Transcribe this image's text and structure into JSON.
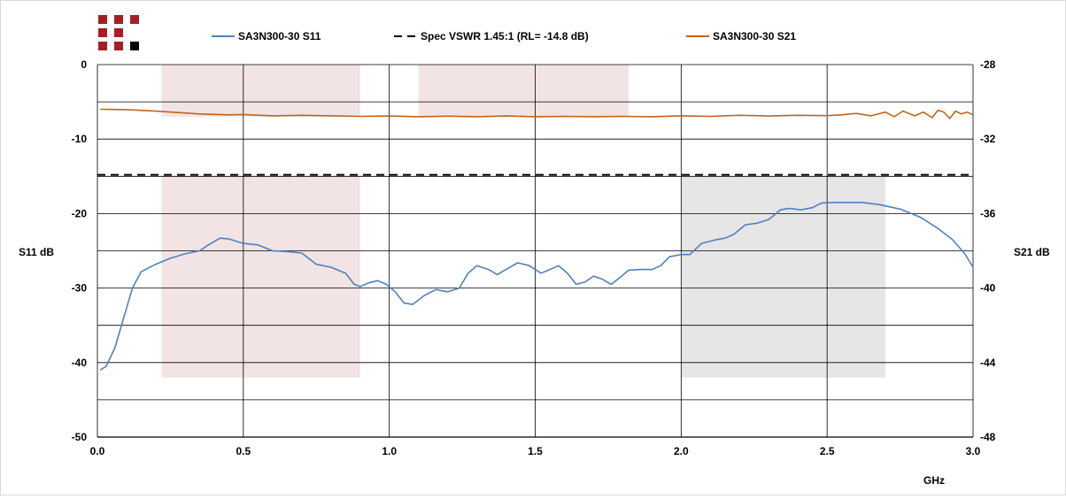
{
  "chart_data": {
    "type": "line",
    "xlabel": "GHz",
    "ylabel_left": "S11 dB",
    "ylabel_right": "S21 dB",
    "xlim": [
      0,
      3
    ],
    "ylim_left": [
      -50,
      0
    ],
    "ylim_right": [
      -48,
      -28
    ],
    "x_ticks": [
      "0.0",
      "0.5",
      "1.0",
      "1.5",
      "2.0",
      "2.5",
      "3.0"
    ],
    "y_left_ticks": [
      "0",
      "-10",
      "-20",
      "-30",
      "-40",
      "-50"
    ],
    "y_right_ticks": [
      "-28",
      "-32",
      "-36",
      "-40",
      "-44",
      "-48"
    ],
    "grid": true,
    "legend_position": "top",
    "bands": [
      {
        "x": [
          0.22,
          0.9
        ],
        "y": [
          -42,
          -15
        ],
        "color": "#f2e4e4"
      },
      {
        "x": [
          2.0,
          2.7
        ],
        "y": [
          -42,
          -15
        ],
        "color": "#e6e6e6"
      },
      {
        "x": [
          0.22,
          0.9
        ],
        "y": [
          -7,
          0
        ],
        "color": "#f2e4e4"
      },
      {
        "x": [
          1.1,
          1.82
        ],
        "y": [
          -7,
          0
        ],
        "color": "#f2e4e4"
      }
    ],
    "series": [
      {
        "name": "SA3N300-30 S11",
        "axis": "left",
        "color": "#4f81bd",
        "dash": "",
        "points": [
          [
            0.01,
            -41
          ],
          [
            0.03,
            -40.5
          ],
          [
            0.06,
            -38
          ],
          [
            0.09,
            -34
          ],
          [
            0.12,
            -30
          ],
          [
            0.15,
            -27.8
          ],
          [
            0.2,
            -26.8
          ],
          [
            0.25,
            -26
          ],
          [
            0.3,
            -25.4
          ],
          [
            0.35,
            -25
          ],
          [
            0.38,
            -24.2
          ],
          [
            0.42,
            -23.3
          ],
          [
            0.45,
            -23.4
          ],
          [
            0.5,
            -24
          ],
          [
            0.55,
            -24.2
          ],
          [
            0.6,
            -25
          ],
          [
            0.65,
            -25.1
          ],
          [
            0.7,
            -25.3
          ],
          [
            0.75,
            -26.8
          ],
          [
            0.8,
            -27.2
          ],
          [
            0.85,
            -28
          ],
          [
            0.88,
            -29.5
          ],
          [
            0.9,
            -29.8
          ],
          [
            0.93,
            -29.3
          ],
          [
            0.96,
            -29
          ],
          [
            0.99,
            -29.5
          ],
          [
            1.02,
            -30.5
          ],
          [
            1.05,
            -32
          ],
          [
            1.08,
            -32.2
          ],
          [
            1.12,
            -31
          ],
          [
            1.16,
            -30.2
          ],
          [
            1.2,
            -30.5
          ],
          [
            1.24,
            -30
          ],
          [
            1.27,
            -28
          ],
          [
            1.3,
            -27
          ],
          [
            1.34,
            -27.5
          ],
          [
            1.37,
            -28.2
          ],
          [
            1.4,
            -27.5
          ],
          [
            1.44,
            -26.6
          ],
          [
            1.48,
            -27
          ],
          [
            1.52,
            -28
          ],
          [
            1.55,
            -27.5
          ],
          [
            1.58,
            -27
          ],
          [
            1.61,
            -28
          ],
          [
            1.64,
            -29.5
          ],
          [
            1.67,
            -29.2
          ],
          [
            1.7,
            -28.4
          ],
          [
            1.73,
            -28.8
          ],
          [
            1.76,
            -29.5
          ],
          [
            1.79,
            -28.6
          ],
          [
            1.82,
            -27.6
          ],
          [
            1.86,
            -27.5
          ],
          [
            1.9,
            -27.5
          ],
          [
            1.93,
            -27
          ],
          [
            1.96,
            -25.8
          ],
          [
            2.0,
            -25.5
          ],
          [
            2.03,
            -25.5
          ],
          [
            2.07,
            -24
          ],
          [
            2.12,
            -23.5
          ],
          [
            2.15,
            -23.3
          ],
          [
            2.18,
            -22.8
          ],
          [
            2.22,
            -21.5
          ],
          [
            2.26,
            -21.3
          ],
          [
            2.3,
            -20.8
          ],
          [
            2.34,
            -19.5
          ],
          [
            2.37,
            -19.3
          ],
          [
            2.41,
            -19.5
          ],
          [
            2.45,
            -19.2
          ],
          [
            2.48,
            -18.6
          ],
          [
            2.52,
            -18.5
          ],
          [
            2.56,
            -18.5
          ],
          [
            2.62,
            -18.5
          ],
          [
            2.68,
            -18.8
          ],
          [
            2.75,
            -19.4
          ],
          [
            2.82,
            -20.5
          ],
          [
            2.88,
            -22
          ],
          [
            2.93,
            -23.5
          ],
          [
            2.97,
            -25.3
          ],
          [
            3.0,
            -27.2
          ]
        ]
      },
      {
        "name": "Spec VSWR 1.45:1 (RL= -14.8 dB)",
        "axis": "left",
        "color": "#000000",
        "dash": "9,6",
        "points": [
          [
            0,
            -14.8
          ],
          [
            3.0,
            -14.8
          ]
        ]
      },
      {
        "name": "SA3N300-30 S21",
        "axis": "right",
        "color": "#c0651e",
        "dash": "",
        "points": [
          [
            0.01,
            -30.4
          ],
          [
            0.1,
            -30.42
          ],
          [
            0.2,
            -30.5
          ],
          [
            0.3,
            -30.6
          ],
          [
            0.35,
            -30.65
          ],
          [
            0.45,
            -30.7
          ],
          [
            0.5,
            -30.68
          ],
          [
            0.6,
            -30.75
          ],
          [
            0.7,
            -30.72
          ],
          [
            0.8,
            -30.75
          ],
          [
            0.9,
            -30.78
          ],
          [
            1.0,
            -30.76
          ],
          [
            1.1,
            -30.8
          ],
          [
            1.2,
            -30.77
          ],
          [
            1.3,
            -30.8
          ],
          [
            1.4,
            -30.76
          ],
          [
            1.5,
            -30.8
          ],
          [
            1.6,
            -30.78
          ],
          [
            1.7,
            -30.8
          ],
          [
            1.8,
            -30.78
          ],
          [
            1.9,
            -30.8
          ],
          [
            2.0,
            -30.75
          ],
          [
            2.1,
            -30.78
          ],
          [
            2.2,
            -30.72
          ],
          [
            2.3,
            -30.76
          ],
          [
            2.4,
            -30.72
          ],
          [
            2.5,
            -30.74
          ],
          [
            2.55,
            -30.7
          ],
          [
            2.6,
            -30.62
          ],
          [
            2.65,
            -30.75
          ],
          [
            2.7,
            -30.55
          ],
          [
            2.73,
            -30.8
          ],
          [
            2.76,
            -30.5
          ],
          [
            2.8,
            -30.75
          ],
          [
            2.83,
            -30.55
          ],
          [
            2.86,
            -30.85
          ],
          [
            2.88,
            -30.45
          ],
          [
            2.9,
            -30.55
          ],
          [
            2.92,
            -30.9
          ],
          [
            2.94,
            -30.5
          ],
          [
            2.96,
            -30.65
          ],
          [
            2.98,
            -30.55
          ],
          [
            3.0,
            -30.7
          ]
        ]
      }
    ]
  }
}
